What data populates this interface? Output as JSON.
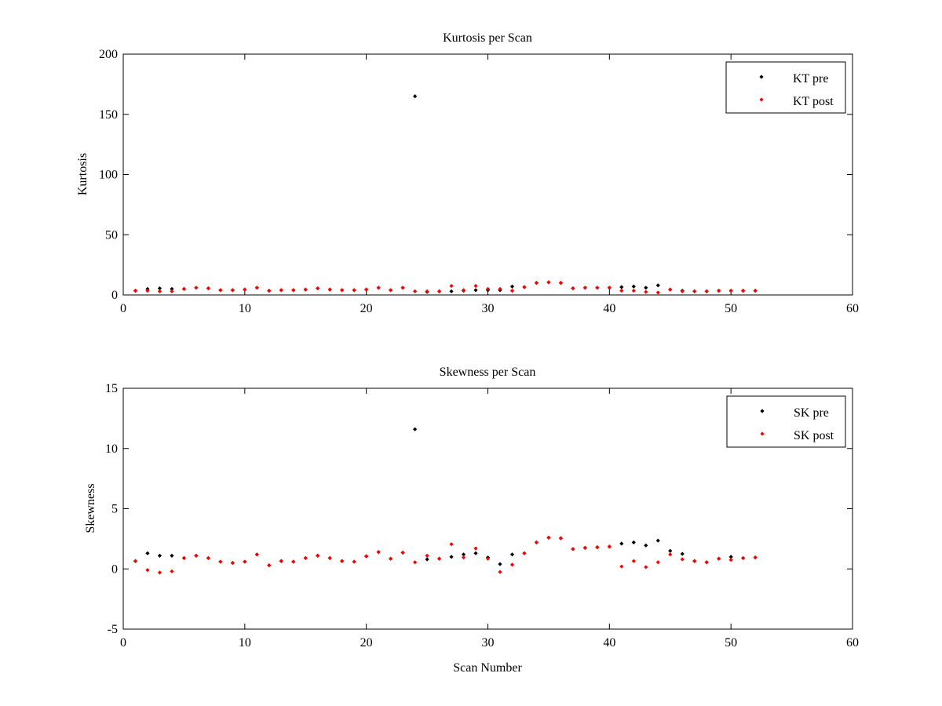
{
  "chart_data": [
    {
      "type": "scatter",
      "title": "Kurtosis per Scan",
      "xlabel": "",
      "ylabel": "Kurtosis",
      "xlim": [
        0,
        60
      ],
      "ylim": [
        0,
        200
      ],
      "xticks": [
        0,
        10,
        20,
        30,
        40,
        50,
        60
      ],
      "yticks": [
        0,
        50,
        100,
        150,
        200
      ],
      "grid": false,
      "legend_position": "top-right",
      "series": [
        {
          "name": "KT pre",
          "color": "#000000",
          "x": [
            1,
            2,
            3,
            4,
            5,
            6,
            7,
            8,
            9,
            10,
            11,
            12,
            13,
            14,
            15,
            16,
            17,
            18,
            19,
            20,
            21,
            22,
            23,
            24,
            25,
            26,
            27,
            28,
            29,
            30,
            31,
            32,
            33,
            34,
            35,
            36,
            37,
            38,
            39,
            40,
            41,
            42,
            43,
            44,
            45,
            46,
            47,
            48,
            49,
            50,
            51,
            52
          ],
          "y": [
            3.5,
            5,
            5.5,
            5,
            5,
            6,
            5.5,
            4,
            4,
            4.5,
            6,
            3.5,
            4,
            4,
            4.5,
            5.5,
            4.5,
            4,
            4,
            4.5,
            6,
            4,
            6,
            165,
            2.5,
            3,
            3,
            3.5,
            4,
            4,
            4,
            7,
            6.5,
            10,
            10.5,
            10,
            5.5,
            6,
            6,
            6,
            6.5,
            7,
            6,
            8,
            4.5,
            3.5,
            3,
            3,
            3.5,
            3.5,
            3.5,
            3.5
          ]
        },
        {
          "name": "KT post",
          "color": "#ff0000",
          "x": [
            1,
            2,
            3,
            4,
            5,
            6,
            7,
            8,
            9,
            10,
            11,
            12,
            13,
            14,
            15,
            16,
            17,
            18,
            19,
            20,
            21,
            22,
            23,
            24,
            25,
            26,
            27,
            28,
            29,
            30,
            31,
            32,
            33,
            34,
            35,
            36,
            37,
            38,
            39,
            40,
            41,
            42,
            43,
            44,
            45,
            46,
            47,
            48,
            49,
            50,
            51,
            52
          ],
          "y": [
            3.5,
            3.5,
            3,
            3,
            5,
            6,
            5.5,
            4,
            4,
            4.5,
            6,
            3.5,
            4,
            4,
            4.5,
            5.5,
            4.5,
            4,
            4,
            4.5,
            6,
            4,
            6,
            3,
            3,
            3,
            7.5,
            4,
            7.5,
            5,
            5,
            3.5,
            6.5,
            10,
            10.5,
            10,
            5.5,
            6,
            6,
            6,
            3.5,
            3.5,
            2.5,
            2,
            4.5,
            3,
            3,
            3,
            3.5,
            3.5,
            3.5,
            3.5
          ]
        }
      ]
    },
    {
      "type": "scatter",
      "title": "Skewness per Scan",
      "xlabel": "Scan Number",
      "ylabel": "Skewness",
      "xlim": [
        0,
        60
      ],
      "ylim": [
        -5,
        15
      ],
      "xticks": [
        0,
        10,
        20,
        30,
        40,
        50,
        60
      ],
      "yticks": [
        -5,
        0,
        5,
        10,
        15
      ],
      "grid": false,
      "legend_position": "top-right",
      "series": [
        {
          "name": "SK pre",
          "color": "#000000",
          "x": [
            1,
            2,
            3,
            4,
            5,
            6,
            7,
            8,
            9,
            10,
            11,
            12,
            13,
            14,
            15,
            16,
            17,
            18,
            19,
            20,
            21,
            22,
            23,
            24,
            25,
            26,
            27,
            28,
            29,
            30,
            31,
            32,
            33,
            34,
            35,
            36,
            37,
            38,
            39,
            40,
            41,
            42,
            43,
            44,
            45,
            46,
            47,
            48,
            49,
            50,
            51,
            52
          ],
          "y": [
            0.65,
            1.3,
            1.1,
            1.1,
            0.9,
            1.1,
            0.9,
            0.6,
            0.5,
            0.6,
            1.2,
            0.3,
            0.65,
            0.6,
            0.9,
            1.1,
            0.9,
            0.65,
            0.6,
            1.05,
            1.4,
            0.85,
            1.35,
            11.6,
            0.8,
            0.85,
            1.0,
            1.2,
            1.3,
            0.95,
            0.4,
            1.2,
            1.3,
            2.2,
            2.6,
            2.55,
            1.65,
            1.75,
            1.8,
            1.85,
            2.1,
            2.2,
            1.95,
            2.35,
            1.5,
            1.25,
            0.65,
            0.55,
            0.85,
            1.0,
            0.9,
            0.95
          ]
        },
        {
          "name": "SK post",
          "color": "#ff0000",
          "x": [
            1,
            2,
            3,
            4,
            5,
            6,
            7,
            8,
            9,
            10,
            11,
            12,
            13,
            14,
            15,
            16,
            17,
            18,
            19,
            20,
            21,
            22,
            23,
            24,
            25,
            26,
            27,
            28,
            29,
            30,
            31,
            32,
            33,
            34,
            35,
            36,
            37,
            38,
            39,
            40,
            41,
            42,
            43,
            44,
            45,
            46,
            47,
            48,
            49,
            50,
            51,
            52
          ],
          "y": [
            0.65,
            -0.1,
            -0.3,
            -0.2,
            0.9,
            1.1,
            0.9,
            0.6,
            0.5,
            0.6,
            1.2,
            0.3,
            0.65,
            0.6,
            0.9,
            1.1,
            0.9,
            0.65,
            0.6,
            1.05,
            1.4,
            0.85,
            1.35,
            0.55,
            1.1,
            0.85,
            2.05,
            0.95,
            1.7,
            0.85,
            -0.25,
            0.35,
            1.3,
            2.2,
            2.6,
            2.55,
            1.65,
            1.75,
            1.8,
            1.85,
            0.2,
            0.65,
            0.15,
            0.55,
            1.2,
            0.8,
            0.65,
            0.55,
            0.85,
            0.75,
            0.9,
            0.95
          ]
        }
      ]
    }
  ]
}
